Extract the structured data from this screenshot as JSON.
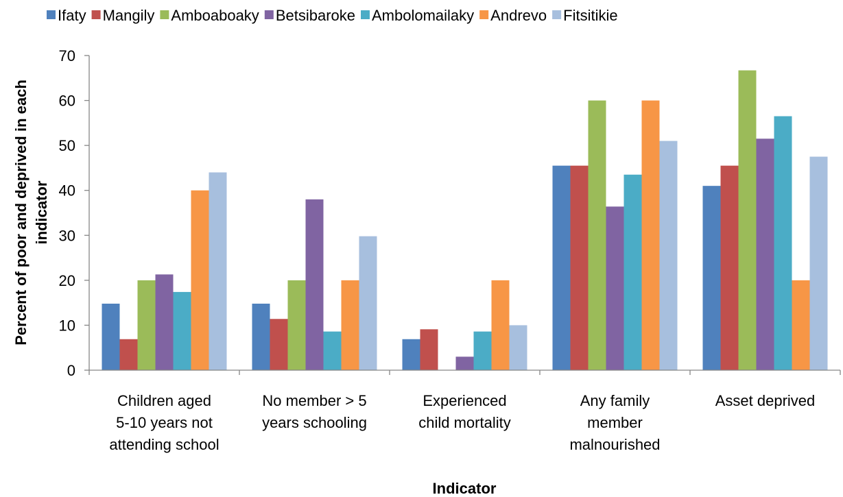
{
  "chart_data": {
    "type": "bar",
    "x_label": "Indicator",
    "y_label": "Percent of poor and deprived in each\nindicator",
    "categories": [
      "Children aged\n5-10 years not\nattending school",
      "No member > 5\nyears schooling",
      "Experienced\nchild mortality",
      "Any family\nmember\nmalnourished",
      "Asset deprived"
    ],
    "series": [
      {
        "name": "Ifaty",
        "color": "#4f81bd",
        "values": [
          14.8,
          14.8,
          6.9,
          45.5,
          41
        ]
      },
      {
        "name": "Mangily",
        "color": "#c0504d",
        "values": [
          6.9,
          11.4,
          9.1,
          45.5,
          45.5
        ]
      },
      {
        "name": "Amboaboaky",
        "color": "#9bbb59",
        "values": [
          20,
          20,
          0,
          60,
          66.7
        ]
      },
      {
        "name": "Betsibaroke",
        "color": "#8064a2",
        "values": [
          21.3,
          38,
          3,
          36.4,
          51.5
        ]
      },
      {
        "name": "Ambolomailaky",
        "color": "#4bacc6",
        "values": [
          17.4,
          8.6,
          8.6,
          43.5,
          56.5
        ]
      },
      {
        "name": "Andrevo",
        "color": "#f79646",
        "values": [
          40,
          20,
          20,
          60,
          20
        ]
      },
      {
        "name": "Fitsitikie",
        "color": "#a7bfde",
        "values": [
          44,
          29.8,
          10,
          51,
          47.5
        ]
      }
    ],
    "ylim": [
      0,
      70
    ],
    "yticks": [
      0,
      10,
      20,
      30,
      40,
      50,
      60,
      70
    ],
    "legend": "top",
    "grid": false
  }
}
